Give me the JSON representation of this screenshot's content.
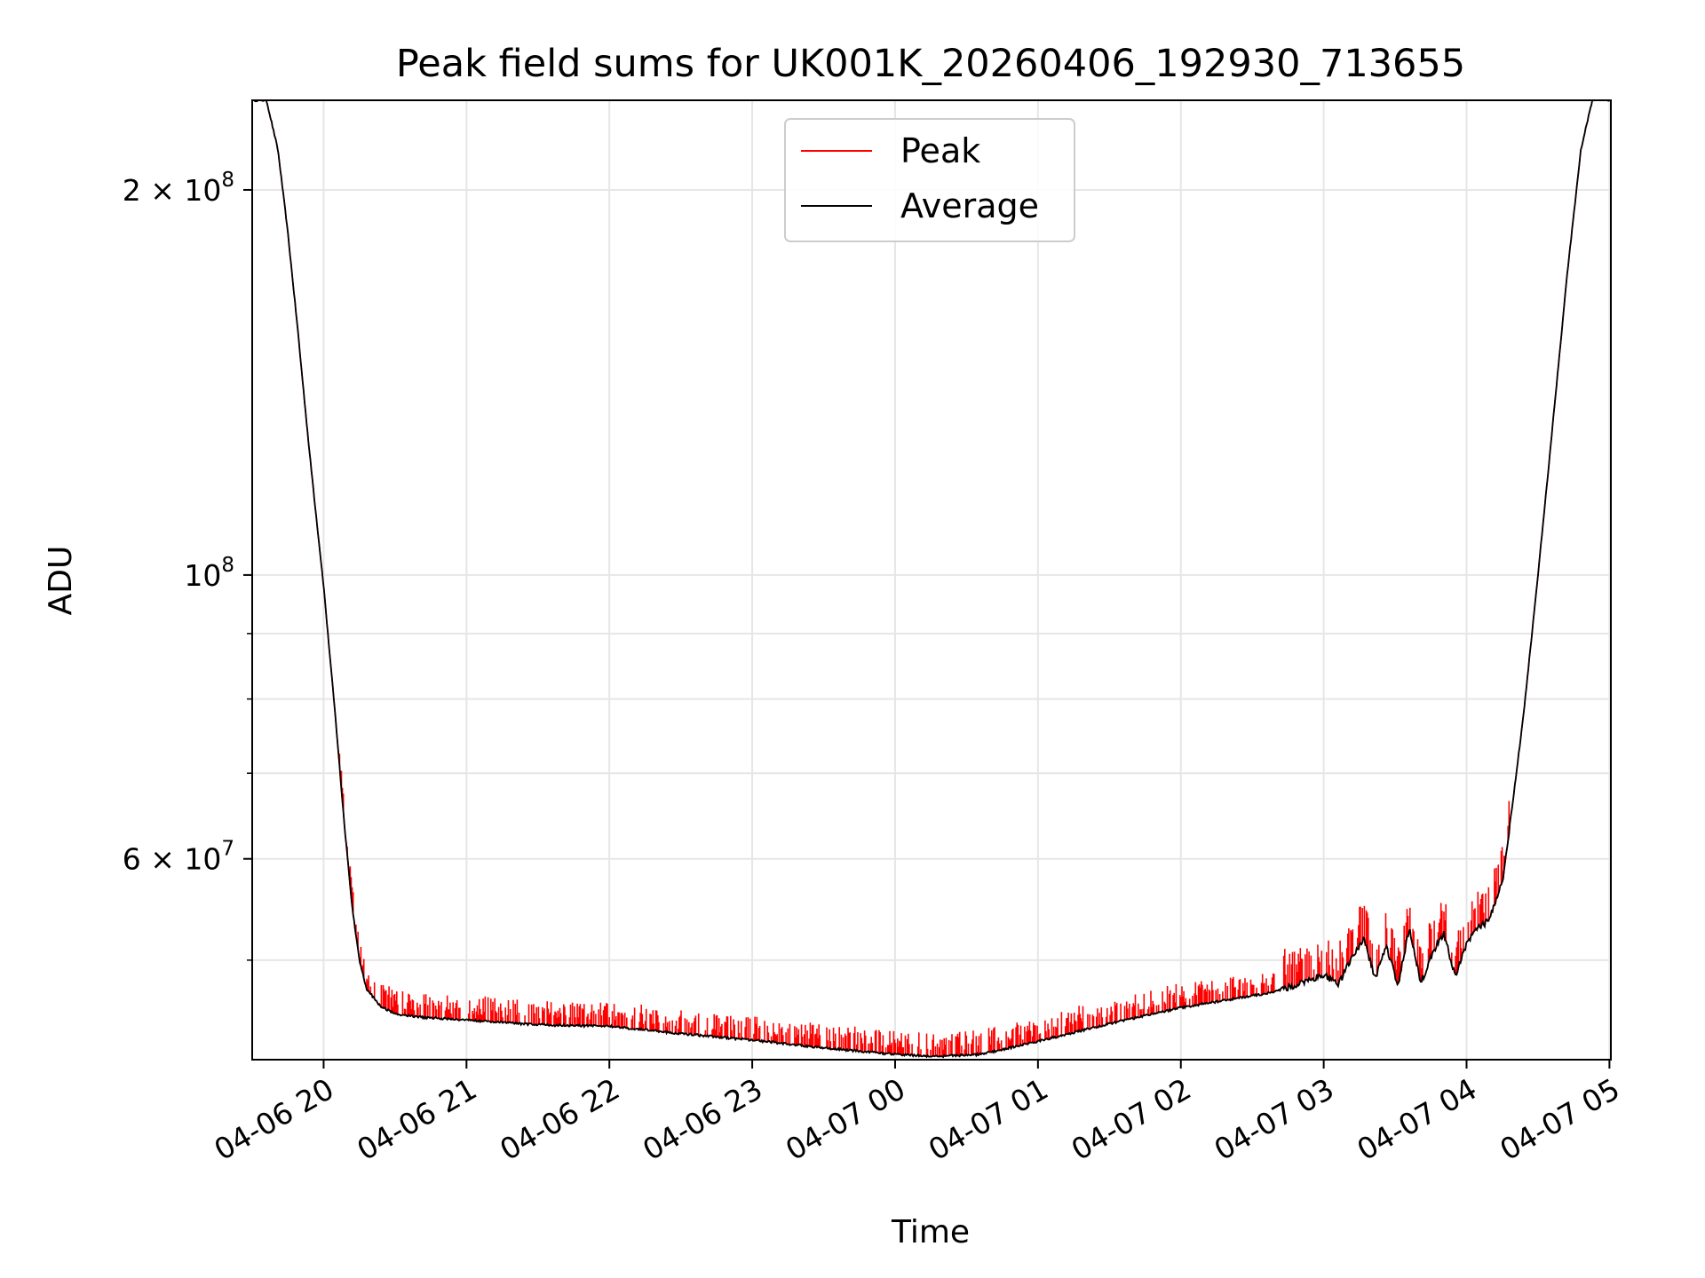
{
  "chart_data": {
    "type": "line",
    "title": "Peak field sums for UK001K_20260406_192930_713655",
    "xlabel": "Time",
    "ylabel": "ADU",
    "yscale": "log",
    "ylim": [
      41800000,
      235000000
    ],
    "xlim_hours": [
      -4.5,
      5.01
    ],
    "grid": true,
    "legend_position": "upper center",
    "x_ticks": [
      {
        "hour": -4,
        "label": "04-06 20"
      },
      {
        "hour": -3,
        "label": "04-06 21"
      },
      {
        "hour": -2,
        "label": "04-06 22"
      },
      {
        "hour": -1,
        "label": "04-06 23"
      },
      {
        "hour": 0,
        "label": "04-07 00"
      },
      {
        "hour": 1,
        "label": "04-07 01"
      },
      {
        "hour": 2,
        "label": "04-07 02"
      },
      {
        "hour": 3,
        "label": "04-07 03"
      },
      {
        "hour": 4,
        "label": "04-07 04"
      },
      {
        "hour": 5,
        "label": "04-07 05"
      }
    ],
    "y_ticks_major": [
      {
        "value": 60000000,
        "mantissa": "6",
        "exponent": "7"
      },
      {
        "value": 100000000,
        "mantissa": "",
        "exponent": "8"
      },
      {
        "value": 200000000,
        "mantissa": "2",
        "exponent": "8"
      }
    ],
    "y_ticks_minor": [
      50000000,
      70000000,
      80000000,
      90000000
    ],
    "series": [
      {
        "name": "Peak",
        "color": "#ff0000",
        "note": "follows Average with frequent upward spikes"
      },
      {
        "name": "Average",
        "color": "#000000",
        "points_hour_value": [
          [
            -4.5,
            235000000
          ],
          [
            -4.4,
            235000000
          ],
          [
            -4.32,
            215000000
          ],
          [
            -4.25,
            185000000
          ],
          [
            -4.18,
            155000000
          ],
          [
            -4.1,
            125000000
          ],
          [
            -4.0,
            98000000
          ],
          [
            -3.92,
            78000000
          ],
          [
            -3.85,
            63000000
          ],
          [
            -3.8,
            55000000
          ],
          [
            -3.75,
            50000000
          ],
          [
            -3.7,
            47500000
          ],
          [
            -3.6,
            46000000
          ],
          [
            -3.5,
            45400000
          ],
          [
            -3.3,
            45100000
          ],
          [
            -3.0,
            44900000
          ],
          [
            -2.5,
            44500000
          ],
          [
            -2.0,
            44400000
          ],
          [
            -1.5,
            43800000
          ],
          [
            -1.0,
            43300000
          ],
          [
            -0.5,
            42700000
          ],
          [
            0.0,
            42200000
          ],
          [
            0.3,
            42050000
          ],
          [
            0.6,
            42200000
          ],
          [
            1.0,
            43200000
          ],
          [
            1.5,
            44600000
          ],
          [
            2.0,
            45900000
          ],
          [
            2.4,
            46700000
          ],
          [
            2.65,
            47200000
          ],
          [
            2.8,
            47800000
          ],
          [
            2.9,
            48300000
          ],
          [
            3.0,
            48700000
          ],
          [
            3.1,
            47800000
          ],
          [
            3.2,
            50300000
          ],
          [
            3.28,
            52000000
          ],
          [
            3.36,
            48400000
          ],
          [
            3.44,
            51200000
          ],
          [
            3.52,
            47800000
          ],
          [
            3.6,
            53000000
          ],
          [
            3.68,
            48000000
          ],
          [
            3.76,
            50600000
          ],
          [
            3.84,
            52500000
          ],
          [
            3.92,
            48500000
          ],
          [
            4.0,
            51500000
          ],
          [
            4.08,
            52900000
          ],
          [
            4.16,
            53800000
          ],
          [
            4.25,
            57500000
          ],
          [
            4.32,
            66000000
          ],
          [
            4.4,
            78000000
          ],
          [
            4.5,
            100000000
          ],
          [
            4.6,
            130000000
          ],
          [
            4.7,
            170000000
          ],
          [
            4.8,
            215000000
          ],
          [
            4.88,
            235000000
          ],
          [
            5.01,
            235000000
          ]
        ]
      }
    ]
  }
}
